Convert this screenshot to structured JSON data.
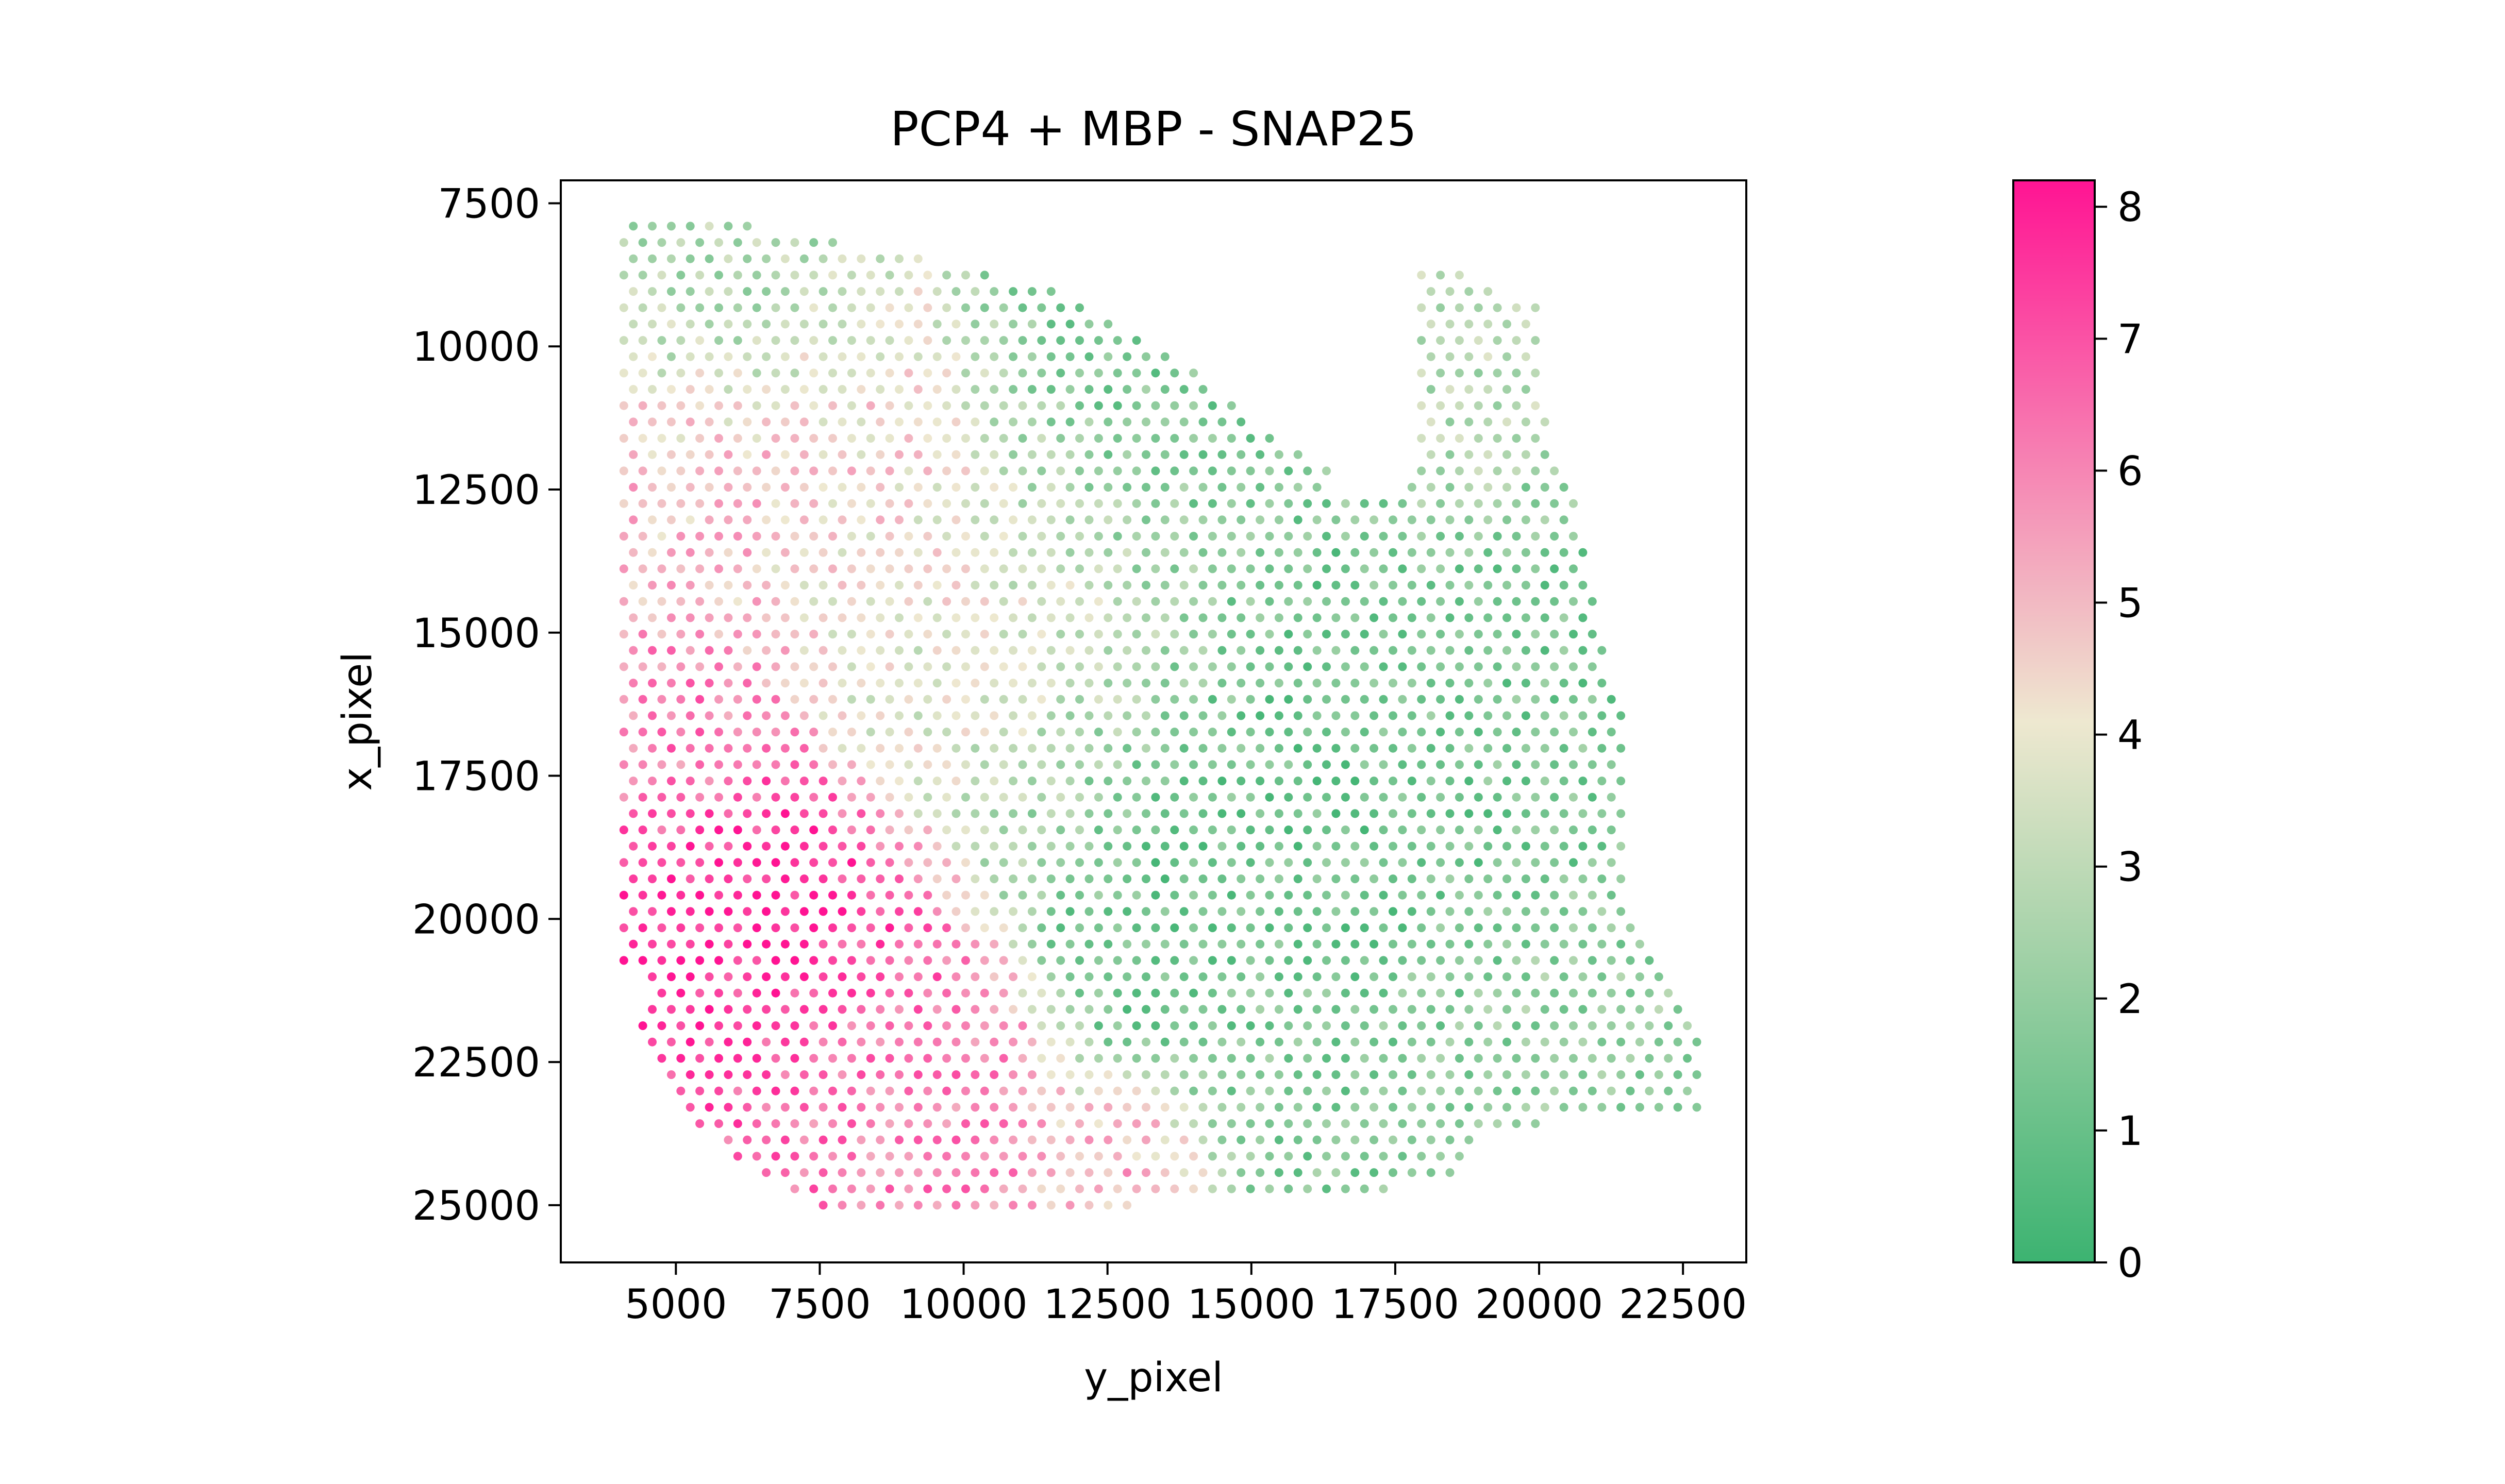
{
  "chart_data": {
    "type": "scatter",
    "title": "PCP4 + MBP - SNAP25",
    "xlabel": "y_pixel",
    "ylabel": "x_pixel",
    "xlim": [
      3000,
      23600
    ],
    "ylim": [
      26000,
      7100
    ],
    "y_inverted": true,
    "grid": false,
    "x_ticks": [
      5000,
      7500,
      10000,
      12500,
      15000,
      17500,
      20000,
      22500
    ],
    "x_tick_labels": [
      "5000",
      "7500",
      "10000",
      "12500",
      "15000",
      "17500",
      "20000",
      "22500"
    ],
    "y_ticks": [
      7500,
      10000,
      12500,
      15000,
      17500,
      20000,
      22500,
      25000
    ],
    "y_tick_labels": [
      "7500",
      "10000",
      "12500",
      "15000",
      "17500",
      "20000",
      "22500",
      "25000"
    ],
    "colorbar": {
      "min": 0,
      "max": 8.2,
      "ticks": [
        0,
        1,
        2,
        3,
        4,
        5,
        6,
        7,
        8
      ],
      "tick_labels": [
        "0",
        "1",
        "2",
        "3",
        "4",
        "5",
        "6",
        "7",
        "8"
      ],
      "colors": [
        "#3cb371",
        "#eee8d0",
        "#ff1493"
      ],
      "color_positions": [
        0,
        0.5,
        1
      ]
    },
    "spot_grid": {
      "x_start": 4400,
      "x_step": 330,
      "y_start": 7900,
      "y_step": 285,
      "offset_odd_rows": true
    },
    "tissue_boundary": [
      [
        4000,
        7800
      ],
      [
        6000,
        7800
      ],
      [
        9000,
        8400
      ],
      [
        11500,
        9000
      ],
      [
        13500,
        10000
      ],
      [
        15000,
        11200
      ],
      [
        16000,
        12000
      ],
      [
        17600,
        12300
      ],
      [
        17600,
        8300
      ],
      [
        20000,
        9300
      ],
      [
        20000,
        11000
      ],
      [
        20700,
        12800
      ],
      [
        21000,
        15000
      ],
      [
        21500,
        16500
      ],
      [
        21500,
        19500
      ],
      [
        22300,
        21000
      ],
      [
        22800,
        22000
      ],
      [
        22800,
        23300
      ],
      [
        19000,
        23700
      ],
      [
        18500,
        24500
      ],
      [
        16000,
        25000
      ],
      [
        13000,
        25000
      ],
      [
        10000,
        25100
      ],
      [
        8000,
        25200
      ],
      [
        6500,
        24600
      ],
      [
        5000,
        23200
      ],
      [
        4200,
        22000
      ],
      [
        4600,
        21500
      ],
      [
        4000,
        20600
      ]
    ],
    "excluded_region": [
      [
        17200,
        12700
      ],
      [
        17900,
        12300
      ],
      [
        17900,
        8200
      ],
      [
        16400,
        8200
      ],
      [
        16400,
        12700
      ]
    ],
    "value_hotspots": [
      {
        "x": 6200,
        "y": 20500,
        "value": 8.0,
        "radius": 2000
      },
      {
        "x": 7600,
        "y": 22200,
        "value": 6.6,
        "radius": 2000
      },
      {
        "x": 4800,
        "y": 17000,
        "value": 6.2,
        "radius": 1500
      },
      {
        "x": 8700,
        "y": 23300,
        "value": 6.0,
        "radius": 1500
      },
      {
        "x": 4600,
        "y": 12500,
        "value": 5.0,
        "radius": 2000
      },
      {
        "x": 9000,
        "y": 12300,
        "value": 4.6,
        "radius": 2000
      },
      {
        "x": 13200,
        "y": 24200,
        "value": 5.6,
        "radius": 1000
      },
      {
        "x": 11000,
        "y": 15000,
        "value": 3.8,
        "radius": 2500
      },
      {
        "x": 12500,
        "y": 11500,
        "value": 1.4,
        "radius": 2200
      },
      {
        "x": 15000,
        "y": 17500,
        "value": 1.1,
        "radius": 3000
      },
      {
        "x": 19500,
        "y": 16000,
        "value": 1.4,
        "radius": 2800
      },
      {
        "x": 19000,
        "y": 10500,
        "value": 2.8,
        "radius": 1800
      },
      {
        "x": 16000,
        "y": 23500,
        "value": 1.6,
        "radius": 2200
      },
      {
        "x": 21000,
        "y": 22000,
        "value": 2.0,
        "radius": 1800
      },
      {
        "x": 5500,
        "y": 9000,
        "value": 2.6,
        "radius": 1800
      }
    ]
  }
}
